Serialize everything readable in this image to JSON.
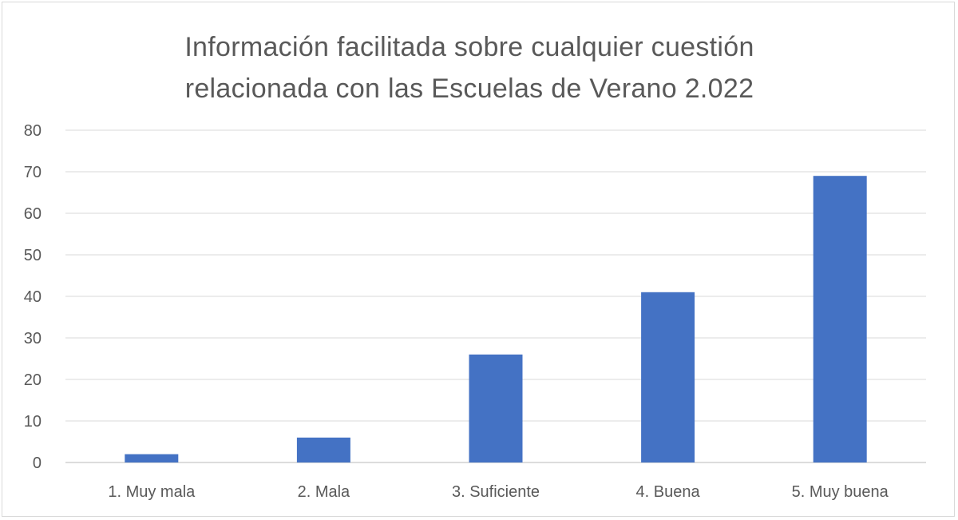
{
  "chart_data": {
    "type": "bar",
    "title": "Información facilitada sobre cualquier cuestión\nrelacionada con las Escuelas de Verano 2.022",
    "categories": [
      "1. Muy mala",
      "2. Mala",
      "3. Suficiente",
      "4. Buena",
      "5. Muy buena"
    ],
    "values": [
      2,
      6,
      26,
      41,
      69
    ],
    "ylim": [
      0,
      80
    ],
    "yticks": [
      0,
      10,
      20,
      30,
      40,
      50,
      60,
      70,
      80
    ],
    "grid": true,
    "legend": "none",
    "bar_color": "#4472c4"
  }
}
